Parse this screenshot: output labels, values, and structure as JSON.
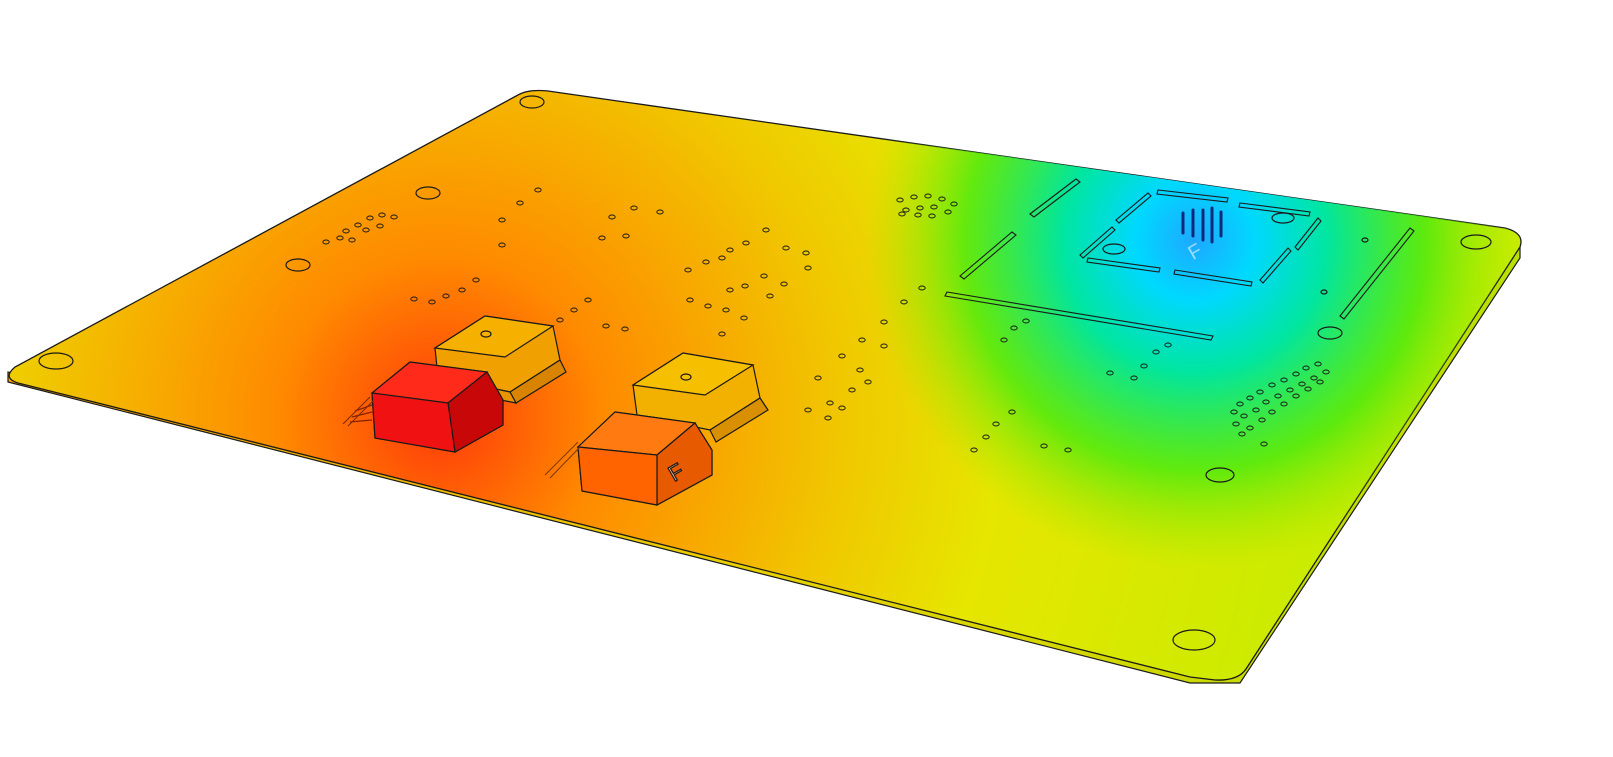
{
  "scene": {
    "subject": "pcb-thermal-simulation",
    "background_color": "#ffffff",
    "outline_color": "#1a1a1a",
    "colormap": {
      "hot": "#ff1a1a",
      "warm": "#ff8c00",
      "mid": "#e8e600",
      "cool": "#7fe600",
      "cold": "#00d8ff",
      "coldest": "#0033cc"
    },
    "components": [
      {
        "kind": "connector",
        "temperature_level": "hot"
      },
      {
        "kind": "connector",
        "temperature_level": "warm"
      },
      {
        "kind": "chip",
        "temperature_level": "coldest"
      }
    ]
  }
}
